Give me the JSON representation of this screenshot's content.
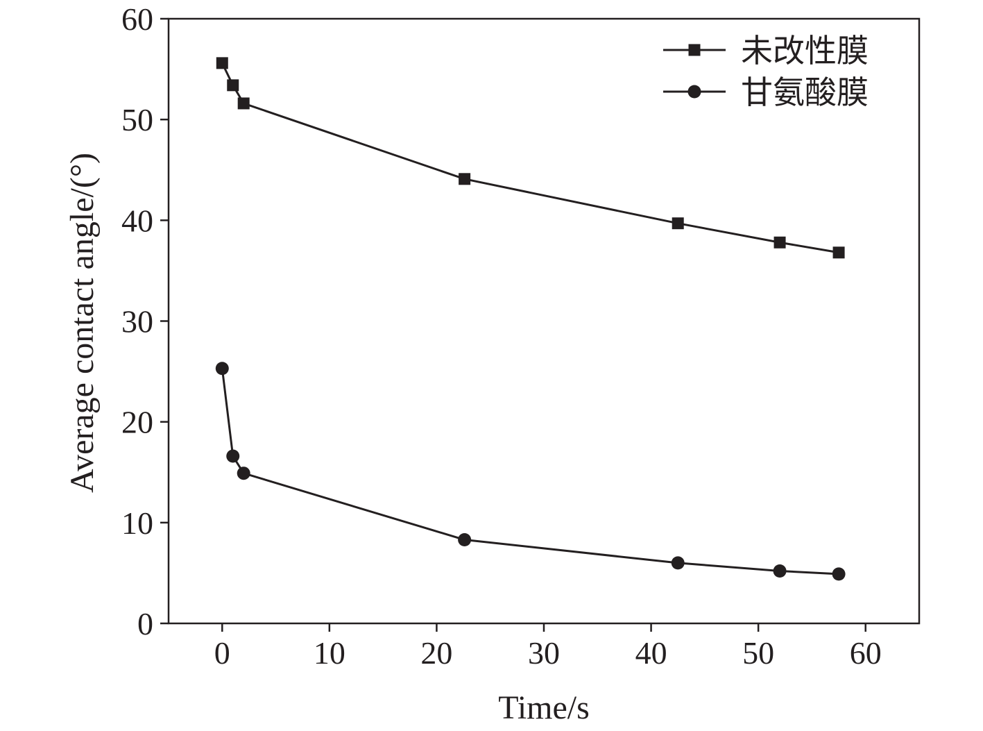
{
  "chart_data": {
    "type": "line",
    "title": "",
    "xlabel": "Time/s",
    "ylabel": "Average contact angle/(°)",
    "xlim": [
      -5,
      65
    ],
    "ylim": [
      0,
      60
    ],
    "xticks": [
      0,
      10,
      20,
      30,
      40,
      50,
      60
    ],
    "yticks": [
      0,
      10,
      20,
      30,
      40,
      50,
      60
    ],
    "x_tick_labels": [
      "0",
      "10",
      "20",
      "30",
      "40",
      "50",
      "60"
    ],
    "y_tick_labels": [
      "0",
      "10",
      "20",
      "30",
      "40",
      "50",
      "60"
    ],
    "grid": false,
    "legend_position": "top-right",
    "series": [
      {
        "name": "未改性膜",
        "marker": "square",
        "color": "#231f20",
        "x": [
          0,
          1,
          2,
          22.6,
          42.5,
          52,
          57.5
        ],
        "values": [
          55.6,
          53.4,
          51.6,
          44.1,
          39.7,
          37.8,
          36.8
        ]
      },
      {
        "name": "甘氨酸膜",
        "marker": "circle",
        "color": "#231f20",
        "x": [
          0,
          1,
          2,
          22.6,
          42.5,
          52,
          57.5
        ],
        "values": [
          25.3,
          16.6,
          14.9,
          8.3,
          6.0,
          5.2,
          4.9
        ]
      }
    ]
  }
}
